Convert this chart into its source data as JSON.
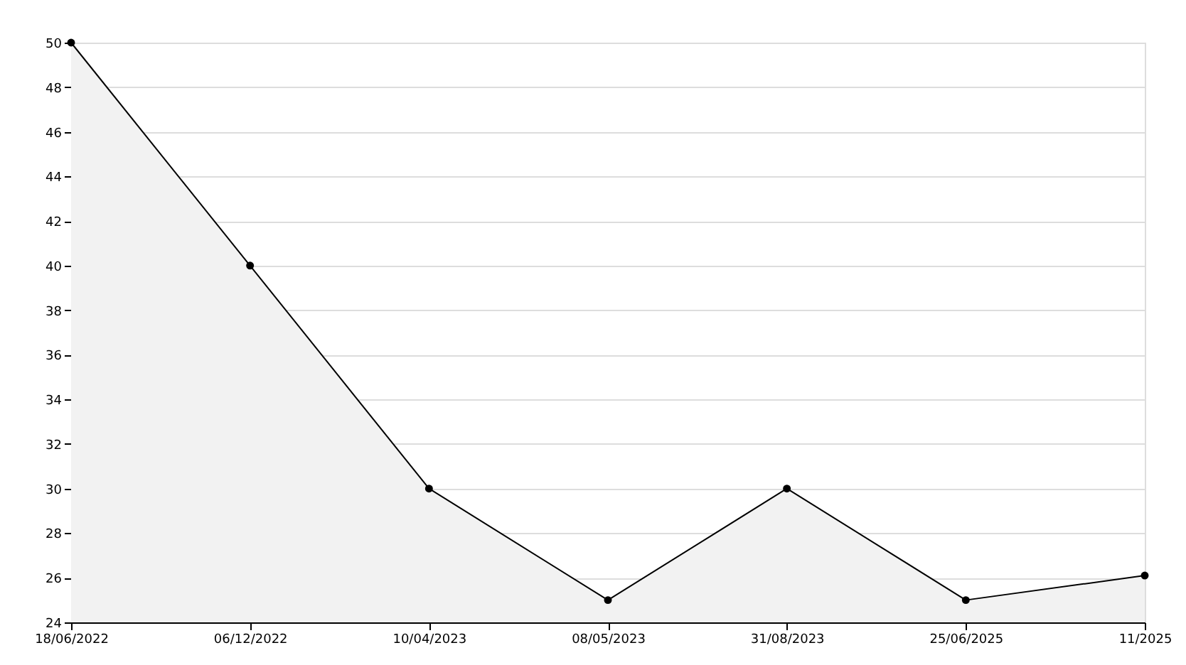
{
  "chart_data": {
    "type": "area",
    "categories": [
      "18/06/2022",
      "06/12/2022",
      "10/04/2023",
      "08/05/2023",
      "31/08/2023",
      "25/06/2025",
      "11/2025"
    ],
    "series": [
      {
        "color": "#000000",
        "values": [
          50,
          40,
          30,
          25,
          30,
          25,
          26.1
        ]
      }
    ],
    "ylim": [
      24,
      50
    ],
    "yticks": [
      24,
      26,
      28,
      30,
      32,
      34,
      36,
      38,
      40,
      42,
      44,
      46,
      48,
      50
    ],
    "grid": "y",
    "marker": "circle",
    "line_style": "solid"
  }
}
